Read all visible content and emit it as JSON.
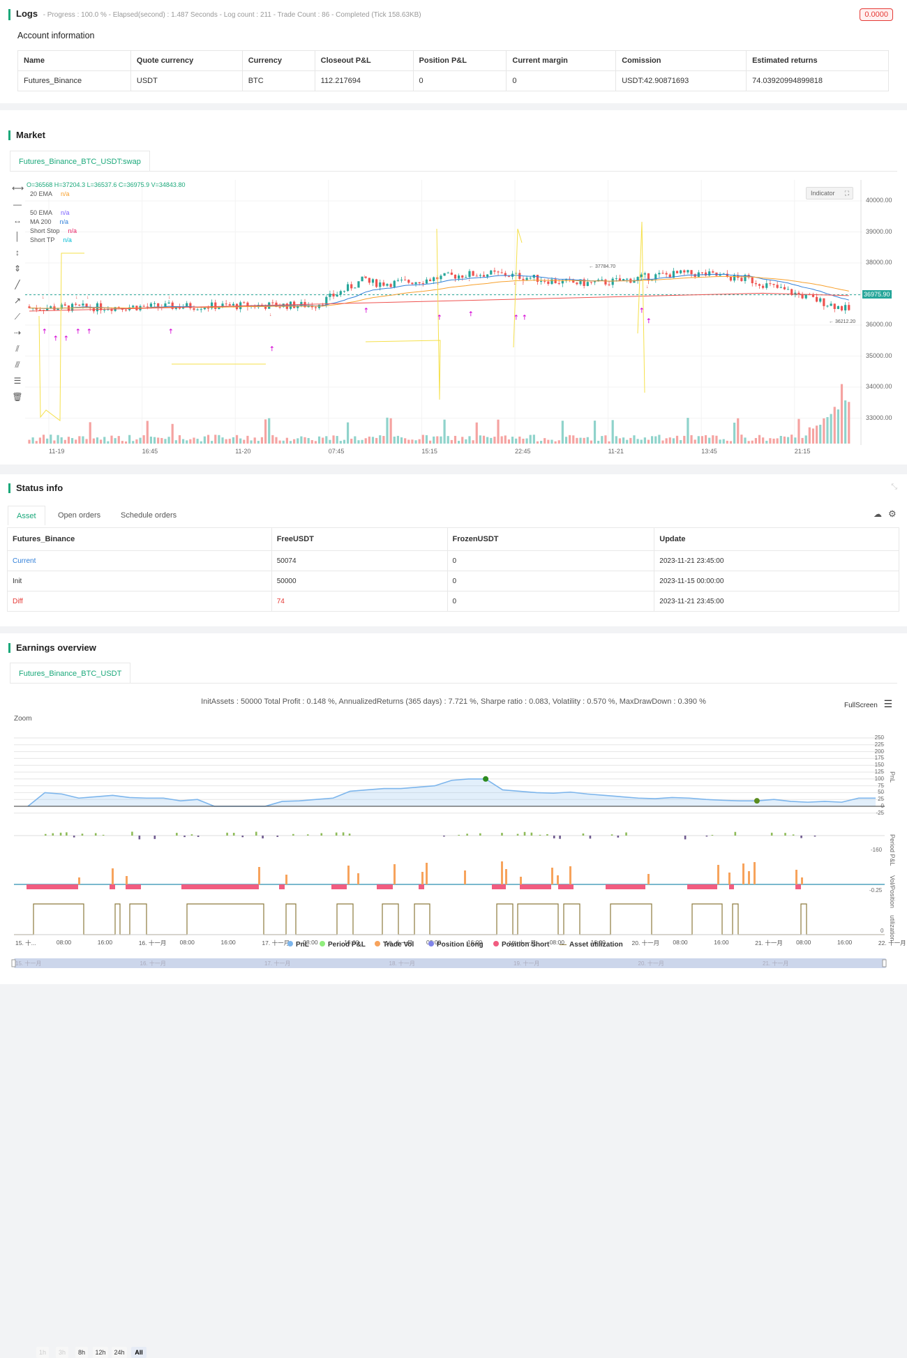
{
  "logs": {
    "title": "Logs",
    "progress_text": "- Progress : 100.0 % - Elapsed(second) : 1.487  Seconds - Log count : 211 - Trade Count : 86 - Completed (Tick 158.63KB)",
    "badge": "0.0000"
  },
  "account": {
    "title": "Account information",
    "headers": [
      "Name",
      "Quote currency",
      "Currency",
      "Closeout P&L",
      "Position P&L",
      "Current margin",
      "Comission",
      "Estimated returns"
    ],
    "row": [
      "Futures_Binance",
      "USDT",
      "BTC",
      "112.217694",
      "0",
      "0",
      "USDT:42.90871693",
      "74.03920994899818"
    ]
  },
  "market": {
    "title": "Market",
    "tab": "Futures_Binance_BTC_USDT:swap",
    "ohlc": "O=36568 H=37204.3 L=36537.6 C=36975.9 V=34843.80",
    "indicators": [
      {
        "name": "20 EMA",
        "value": "n/a",
        "color": "#f7a02c"
      },
      {
        "name": "50 EMA",
        "value": "n/a",
        "color": "#7b61ff"
      },
      {
        "name": "MA 200",
        "value": "n/a",
        "color": "#2f7ed8"
      },
      {
        "name": "Short Stop",
        "value": "n/a",
        "color": "#e91e63"
      },
      {
        "name": "Short TP",
        "value": "n/a",
        "color": "#00bcd4"
      }
    ],
    "indicator_button": "Indicator",
    "price_ticks": [
      "40000.00",
      "39000.00",
      "38000.00",
      "37000.00",
      "36000.00",
      "35000.00",
      "34000.00",
      "33000.00"
    ],
    "current_price": "36975.90",
    "time_ticks": [
      "11-19",
      "16:45",
      "11-20",
      "07:45",
      "15:15",
      "22:45",
      "11-21",
      "13:45",
      "21:15"
    ],
    "annotations": {
      "high": "37784.70",
      "low": "36212.20"
    }
  },
  "status": {
    "title": "Status info",
    "tabs": [
      "Asset",
      "Open orders",
      "Schedule orders"
    ],
    "headers": [
      "Futures_Binance",
      "FreeUSDT",
      "FrozenUSDT",
      "Update"
    ],
    "rows": [
      {
        "label": "Current",
        "free": "50074",
        "frozen": "0",
        "update": "2023-11-21 23:45:00",
        "color": "#2f7ed8"
      },
      {
        "label": "Init",
        "free": "50000",
        "frozen": "0",
        "update": "2023-11-15 00:00:00",
        "color": "#333333"
      },
      {
        "label": "Diff",
        "free": "74",
        "frozen": "0",
        "update": "2023-11-21 23:45:00",
        "color": "#e53935"
      }
    ]
  },
  "earnings": {
    "title": "Earnings overview",
    "tab": "Futures_Binance_BTC_USDT",
    "summary": "InitAssets : 50000 Total Profit : 0.148 %, AnnualizedReturns (365 days) : 7.721 %, Sharpe ratio : 0.083, Volatility : 0.570 %, MaxDrawDown : 0.390 %",
    "fullscreen": "FullScreen",
    "zoom_label": "Zoom",
    "zoom_options": [
      "1h",
      "3h",
      "8h",
      "12h",
      "24h",
      "All"
    ],
    "pnl_ticks": [
      "250",
      "225",
      "200",
      "175",
      "150",
      "125",
      "100",
      "75",
      "50",
      "25",
      "0",
      "-25"
    ],
    "period_tick": "-160",
    "vol_tick": "-0.25",
    "util_tick": "0",
    "axis_labels": [
      "PnL",
      "Period P&L",
      "Vol/Position",
      "utilization"
    ],
    "time_ticks": [
      "15. 十...",
      "08:00",
      "16:00",
      "16. 十一月",
      "08:00",
      "16:00",
      "17. 十一月",
      "08:00",
      "16:00",
      "18. 十一月",
      "08:00",
      "16:00",
      "19. 十一月",
      "08:00",
      "16:00",
      "20. 十一月",
      "08:00",
      "16:00",
      "21. 十一月",
      "08:00",
      "16:00",
      "22. 十一月"
    ],
    "legend": [
      {
        "name": "PnL",
        "color": "#7cb5ec"
      },
      {
        "name": "Period P&L",
        "color": "#90ed7d"
      },
      {
        "name": "Trade Vol",
        "color": "#f7a35c"
      },
      {
        "name": "Position Long",
        "color": "#8085e9"
      },
      {
        "name": "Position Short",
        "color": "#f15c80"
      },
      {
        "name": "Asset utilization",
        "color": "#8d7a3d"
      }
    ],
    "navigator_ticks": [
      "15. 十一月",
      "16. 十一月",
      "17. 十一月",
      "18. 十一月",
      "19. 十一月",
      "20. 十一月",
      "21. 十一月"
    ]
  },
  "chart_data": {
    "type": "line",
    "title": "",
    "series": [
      {
        "name": "PnL",
        "x": [
          0,
          2,
          4,
          6,
          8,
          10,
          12,
          14,
          16,
          18,
          20,
          22,
          24,
          26,
          28,
          30,
          32,
          34,
          36,
          38,
          40,
          42,
          44,
          46,
          48,
          50,
          52,
          54,
          56,
          58,
          60,
          62,
          64,
          66,
          68,
          70,
          72,
          74,
          76,
          78,
          80,
          82,
          84,
          86,
          88,
          90,
          92,
          94,
          96,
          98,
          100
        ],
        "values": [
          0,
          50,
          45,
          30,
          35,
          40,
          32,
          30,
          30,
          20,
          25,
          0,
          0,
          0,
          0,
          18,
          20,
          25,
          30,
          55,
          60,
          65,
          65,
          70,
          75,
          95,
          100,
          100,
          60,
          55,
          50,
          48,
          52,
          45,
          40,
          35,
          30,
          28,
          32,
          30,
          25,
          22,
          20,
          20,
          25,
          18,
          15,
          18,
          15,
          30,
          30
        ]
      }
    ],
    "ylim": [
      -25,
      250
    ]
  }
}
